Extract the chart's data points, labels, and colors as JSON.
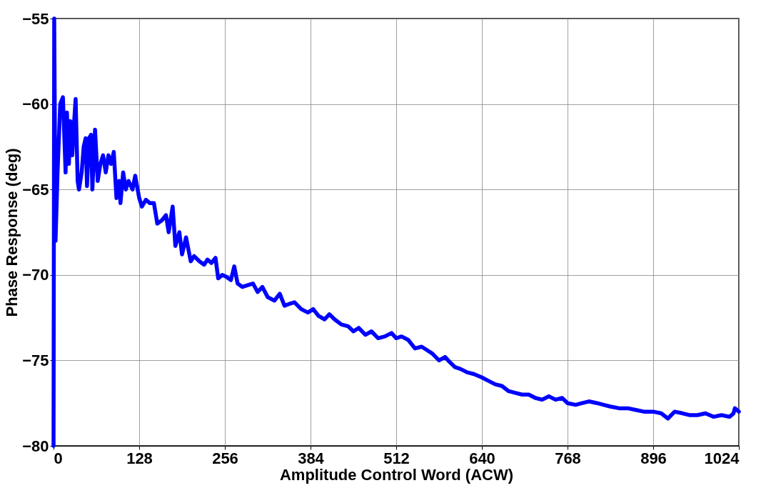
{
  "chart_data": {
    "type": "line",
    "xlabel": "Amplitude Control Word (ACW)",
    "ylabel": "Phase Response (deg)",
    "xlim": [
      0,
      1024
    ],
    "xticks": [
      0,
      128,
      256,
      384,
      512,
      640,
      768,
      896,
      1024
    ],
    "ylim": [
      -80,
      -55
    ],
    "yticks": [
      -80,
      -75,
      -70,
      -65,
      -60,
      -55
    ],
    "grid": true,
    "legend": false,
    "marker": "none",
    "line_style": "solid",
    "series": [
      {
        "color": "#0000ff",
        "x": [
          0,
          1,
          3,
          6,
          10,
          14,
          18,
          20,
          23,
          25,
          28,
          30,
          33,
          36,
          38,
          42,
          45,
          48,
          50,
          53,
          56,
          58,
          62,
          66,
          70,
          74,
          78,
          82,
          86,
          90,
          94,
          98,
          100,
          104,
          108,
          112,
          118,
          122,
          128,
          132,
          138,
          144,
          150,
          155,
          162,
          168,
          172,
          178,
          182,
          188,
          192,
          198,
          205,
          210,
          218,
          225,
          230,
          236,
          242,
          246,
          252,
          258,
          265,
          270,
          275,
          282,
          290,
          298,
          305,
          312,
          320,
          330,
          338,
          345,
          352,
          360,
          370,
          380,
          388,
          396,
          405,
          412,
          420,
          430,
          440,
          448,
          456,
          466,
          475,
          485,
          495,
          505,
          512,
          520,
          530,
          540,
          550,
          558,
          566,
          576,
          585,
          592,
          600,
          608,
          618,
          628,
          640,
          650,
          660,
          670,
          680,
          690,
          700,
          710,
          720,
          730,
          740,
          750,
          760,
          768,
          780,
          790,
          800,
          812,
          822,
          832,
          845,
          858,
          870,
          882,
          896,
          908,
          918,
          928,
          940,
          950,
          962,
          974,
          986,
          998,
          1010,
          1016,
          1018,
          1024
        ],
        "values": [
          -80,
          -55,
          -68,
          -64,
          -60,
          -59.6,
          -64,
          -60.5,
          -63.5,
          -61,
          -63,
          -61.5,
          -59.7,
          -64.5,
          -65,
          -64,
          -62.5,
          -62,
          -64.8,
          -62,
          -61.8,
          -65,
          -61.5,
          -64.5,
          -63.5,
          -63,
          -64,
          -63,
          -63.5,
          -62.8,
          -65.5,
          -64.5,
          -65.8,
          -64,
          -65,
          -64.5,
          -65,
          -64.2,
          -65.5,
          -66,
          -65.6,
          -65.8,
          -65.8,
          -67,
          -66.8,
          -66.5,
          -67.5,
          -66,
          -68.3,
          -67.5,
          -68.8,
          -67.8,
          -69.2,
          -68.9,
          -69.2,
          -69.4,
          -69.1,
          -69.3,
          -69,
          -70.2,
          -70,
          -70.1,
          -70.3,
          -69.5,
          -70.5,
          -70.7,
          -70.6,
          -70.5,
          -71,
          -70.7,
          -71.3,
          -71.5,
          -71.1,
          -71.8,
          -71.7,
          -71.6,
          -72,
          -72.2,
          -72,
          -72.4,
          -72.6,
          -72.3,
          -72.6,
          -72.9,
          -73,
          -73.3,
          -73.1,
          -73.5,
          -73.3,
          -73.7,
          -73.6,
          -73.4,
          -73.7,
          -73.6,
          -73.8,
          -74.3,
          -74.2,
          -74.4,
          -74.6,
          -75,
          -74.8,
          -75.1,
          -75.4,
          -75.5,
          -75.7,
          -75.8,
          -76,
          -76.2,
          -76.4,
          -76.5,
          -76.8,
          -76.9,
          -77,
          -77,
          -77.2,
          -77.3,
          -77.1,
          -77.3,
          -77.2,
          -77.5,
          -77.6,
          -77.5,
          -77.4,
          -77.5,
          -77.6,
          -77.7,
          -77.8,
          -77.8,
          -77.9,
          -78,
          -78,
          -78.1,
          -78.4,
          -78,
          -78.1,
          -78.2,
          -78.2,
          -78.1,
          -78.3,
          -78.2,
          -78.3,
          -78.1,
          -77.8,
          -78
        ]
      }
    ]
  }
}
